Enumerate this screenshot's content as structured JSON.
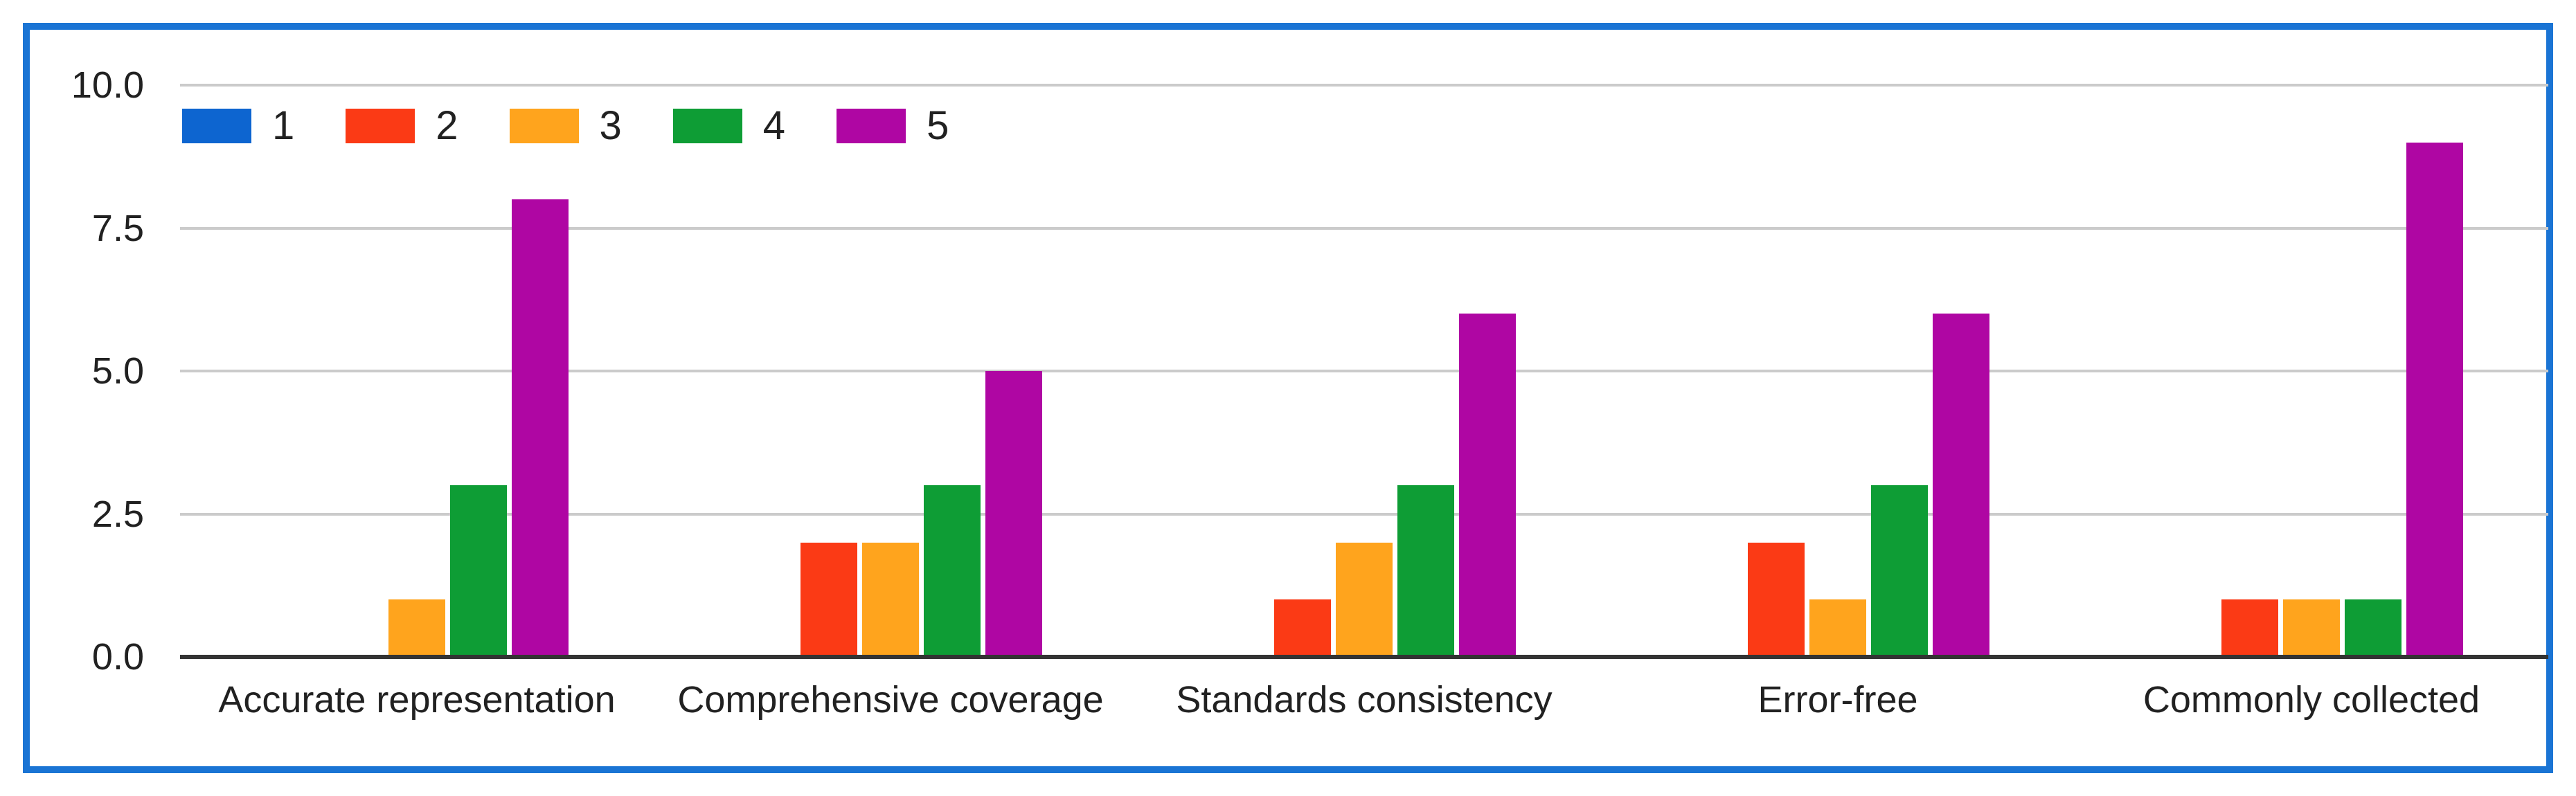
{
  "chart_data": {
    "type": "bar",
    "title": "",
    "xlabel": "",
    "ylabel": "",
    "categories": [
      "Accurate representation",
      "Comprehensive coverage",
      "Standards consistency",
      "Error-free",
      "Commonly collected"
    ],
    "series": [
      {
        "name": "1",
        "color": "#0d65d0",
        "values": [
          0,
          0,
          0,
          0,
          0
        ]
      },
      {
        "name": "2",
        "color": "#fb3a15",
        "values": [
          0,
          2,
          1,
          2,
          1
        ]
      },
      {
        "name": "3",
        "color": "#ffa41d",
        "values": [
          1,
          2,
          2,
          1,
          1
        ]
      },
      {
        "name": "4",
        "color": "#0e9d35",
        "values": [
          3,
          3,
          3,
          3,
          1
        ]
      },
      {
        "name": "5",
        "color": "#af06a3",
        "values": [
          8,
          5,
          6,
          6,
          9
        ]
      }
    ],
    "ylim": [
      0,
      10
    ],
    "yticks": [
      0.0,
      2.5,
      5.0,
      7.5,
      10.0
    ],
    "ytick_labels": [
      "0.0",
      "2.5",
      "5.0",
      "7.5",
      "10.0"
    ],
    "grid": true,
    "legend_position": "top-left"
  },
  "colors": {
    "frame_border": "#1a74d4",
    "gridline": "#cbcbcb",
    "axis_line": "#333333",
    "text": "#212121",
    "background": "#ffffff"
  }
}
